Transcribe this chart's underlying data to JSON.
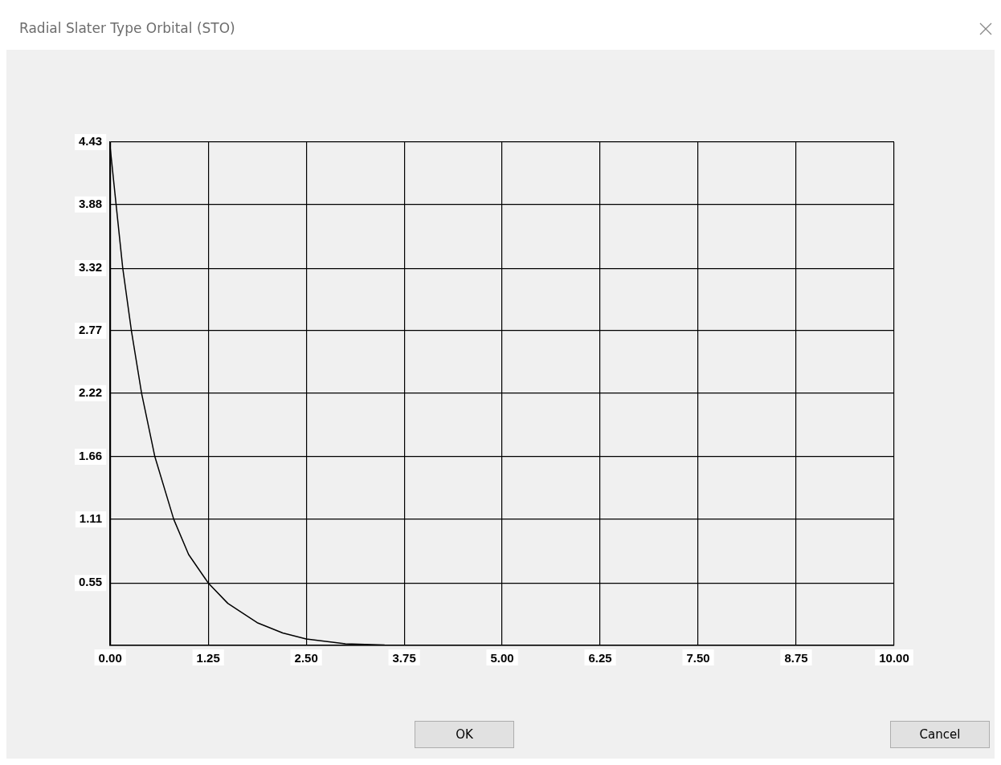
{
  "chart_data": {
    "type": "line",
    "title": "Radial Slater Type Orbital (STO)",
    "x": [
      0,
      0.075,
      0.16,
      0.27,
      0.4,
      0.57,
      0.81,
      1.0,
      1.25,
      1.5,
      1.875,
      2.2,
      2.5,
      3.0,
      3.5,
      4.28
    ],
    "series": [
      {
        "color": "#000000",
        "values": [
          4.38,
          3.88,
          3.32,
          2.77,
          2.22,
          1.66,
          1.11,
          0.8,
          0.55,
          0.37,
          0.2,
          0.11,
          0.056,
          0.014,
          0.003,
          0
        ]
      }
    ],
    "xlim": [
      0,
      10
    ],
    "ylim": [
      0,
      4.43
    ],
    "xticks": [
      {
        "value": 0,
        "label": "0.00"
      },
      {
        "value": 1.25,
        "label": "1.25"
      },
      {
        "value": 2.5,
        "label": "2.50"
      },
      {
        "value": 3.75,
        "label": "3.75"
      },
      {
        "value": 5,
        "label": "5.00"
      },
      {
        "value": 6.25,
        "label": "6.25"
      },
      {
        "value": 7.5,
        "label": "7.50"
      },
      {
        "value": 8.75,
        "label": "8.75"
      },
      {
        "value": 10,
        "label": "10.00"
      }
    ],
    "yticks": [
      {
        "value": 0,
        "label": null
      },
      0.55,
      1.11,
      1.66,
      2.22,
      2.77,
      3.32,
      3.88,
      4.43
    ],
    "grid": true,
    "legend": false,
    "marker": "none",
    "line_style": "solid",
    "annotations": [
      "OK",
      "Cancel"
    ]
  }
}
